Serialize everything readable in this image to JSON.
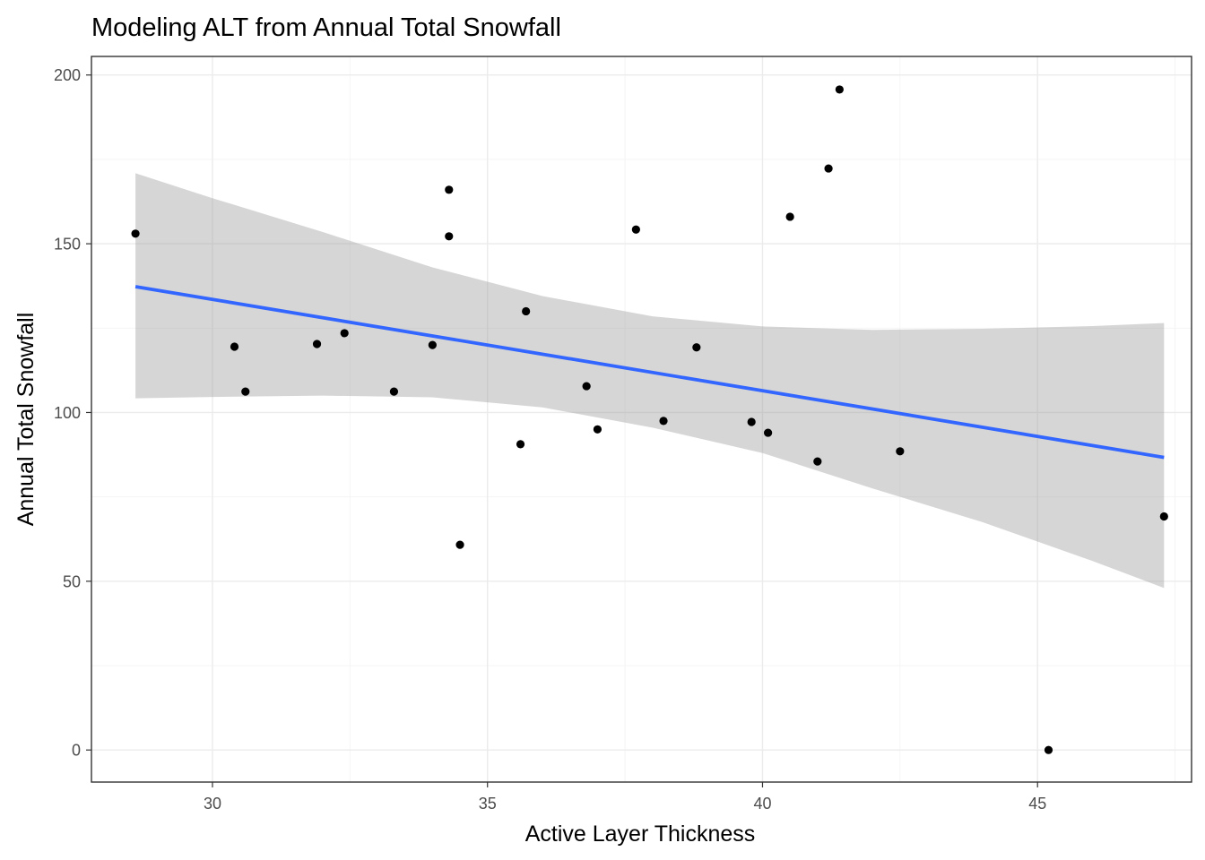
{
  "chart_data": {
    "type": "scatter",
    "title": "Modeling ALT from Annual Total Snowfall",
    "xlabel": "Active Layer Thickness",
    "ylabel": "Annual Total Snowfall",
    "xlim": [
      27.8,
      47.8
    ],
    "ylim": [
      -9.5,
      205.5
    ],
    "x_ticks": [
      30,
      35,
      40,
      45
    ],
    "y_ticks": [
      0,
      50,
      100,
      150,
      200
    ],
    "grid": true,
    "legend": "none",
    "colors": {
      "points": "#000000",
      "fit_line": "#3366FF",
      "ribbon": "#999999",
      "panel_border": "#333333",
      "grid": "#EBEBEB"
    },
    "points": [
      {
        "x": 28.6,
        "y": 153.0
      },
      {
        "x": 30.4,
        "y": 119.5
      },
      {
        "x": 30.6,
        "y": 106.2
      },
      {
        "x": 31.9,
        "y": 120.3
      },
      {
        "x": 32.4,
        "y": 123.5
      },
      {
        "x": 33.3,
        "y": 106.2
      },
      {
        "x": 34.0,
        "y": 120.0
      },
      {
        "x": 34.3,
        "y": 166.0
      },
      {
        "x": 34.3,
        "y": 152.2
      },
      {
        "x": 34.5,
        "y": 60.8
      },
      {
        "x": 35.6,
        "y": 90.6
      },
      {
        "x": 35.7,
        "y": 130.0
      },
      {
        "x": 36.8,
        "y": 107.8
      },
      {
        "x": 37.0,
        "y": 95.0
      },
      {
        "x": 37.7,
        "y": 154.2
      },
      {
        "x": 38.2,
        "y": 97.5
      },
      {
        "x": 38.8,
        "y": 119.3
      },
      {
        "x": 39.8,
        "y": 97.2
      },
      {
        "x": 40.1,
        "y": 94.0
      },
      {
        "x": 40.5,
        "y": 158.0
      },
      {
        "x": 41.0,
        "y": 85.5
      },
      {
        "x": 41.2,
        "y": 172.3
      },
      {
        "x": 41.4,
        "y": 195.7
      },
      {
        "x": 42.5,
        "y": 88.5
      },
      {
        "x": 45.2,
        "y": 0.0
      },
      {
        "x": 47.3,
        "y": 69.2
      }
    ],
    "fit_line": {
      "x": [
        28.6,
        47.3
      ],
      "y": [
        137.3,
        86.7
      ]
    },
    "ribbon": [
      {
        "x": 28.6,
        "lower": 104.2,
        "upper": 170.9
      },
      {
        "x": 30.0,
        "lower": 104.6,
        "upper": 163.5
      },
      {
        "x": 32.0,
        "lower": 105.0,
        "upper": 153.5
      },
      {
        "x": 34.0,
        "lower": 104.5,
        "upper": 143.0
      },
      {
        "x": 36.0,
        "lower": 101.5,
        "upper": 134.5
      },
      {
        "x": 38.0,
        "lower": 95.5,
        "upper": 128.5
      },
      {
        "x": 40.0,
        "lower": 88.0,
        "upper": 125.5
      },
      {
        "x": 42.0,
        "lower": 77.5,
        "upper": 124.5
      },
      {
        "x": 44.0,
        "lower": 67.5,
        "upper": 124.8
      },
      {
        "x": 46.0,
        "lower": 56.0,
        "upper": 125.6
      },
      {
        "x": 47.3,
        "lower": 48.0,
        "upper": 126.5
      }
    ]
  }
}
